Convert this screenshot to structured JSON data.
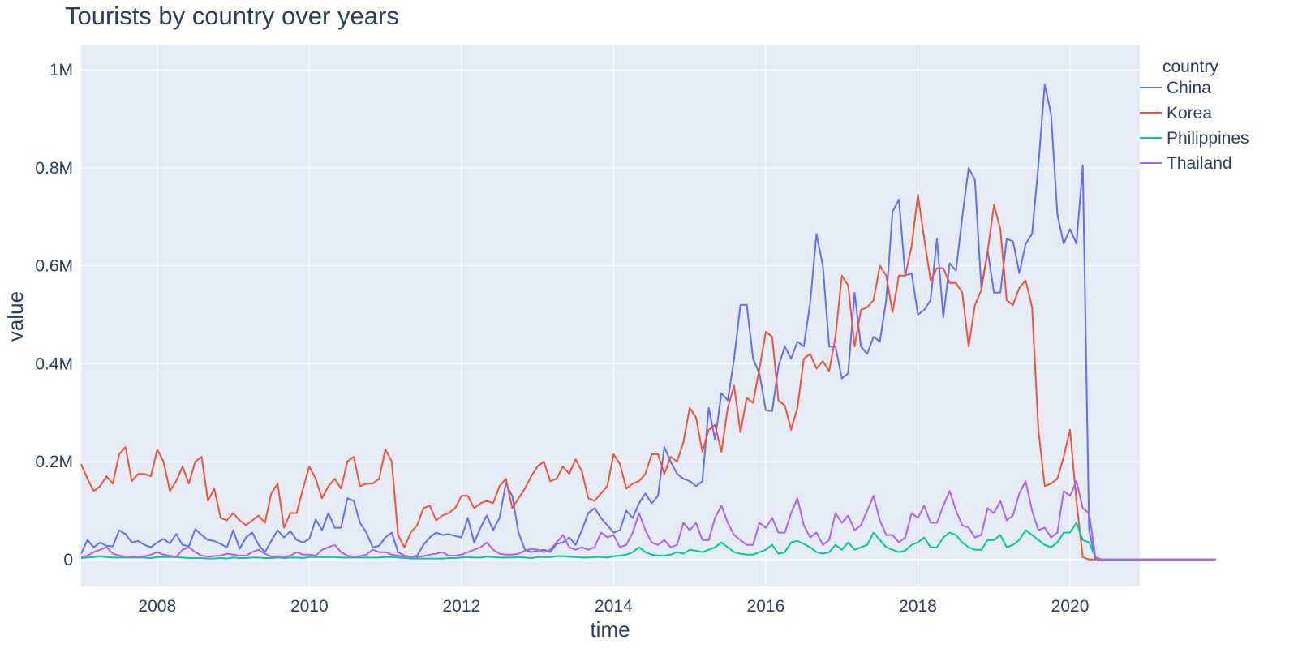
{
  "chart_data": {
    "type": "line",
    "title": "Tourists by country over years",
    "xlabel": "time",
    "ylabel": "value",
    "legend_title": "country",
    "legend_position": "right",
    "grid": true,
    "x_start": "2007-01",
    "frequency": "monthly",
    "xlim": [
      "2007-01",
      "2020-12"
    ],
    "ylim": [
      -55000,
      1050000
    ],
    "x_ticks": [
      {
        "label": "2008",
        "value": "2008-01"
      },
      {
        "label": "2010",
        "value": "2010-01"
      },
      {
        "label": "2012",
        "value": "2012-01"
      },
      {
        "label": "2014",
        "value": "2014-01"
      },
      {
        "label": "2016",
        "value": "2016-01"
      },
      {
        "label": "2018",
        "value": "2018-01"
      },
      {
        "label": "2020",
        "value": "2020-01"
      }
    ],
    "y_ticks": [
      {
        "label": "0",
        "value": 0
      },
      {
        "label": "0.2M",
        "value": 200000
      },
      {
        "label": "0.4M",
        "value": 400000
      },
      {
        "label": "0.6M",
        "value": 600000
      },
      {
        "label": "0.8M",
        "value": 800000
      },
      {
        "label": "1M",
        "value": 1000000
      }
    ],
    "series": [
      {
        "name": "China",
        "color": "#636efa",
        "values": [
          12000,
          40000,
          25000,
          35000,
          28000,
          27000,
          60000,
          52000,
          35000,
          38000,
          30000,
          25000,
          35000,
          42000,
          33000,
          52000,
          30000,
          27000,
          62000,
          50000,
          40000,
          38000,
          32000,
          25000,
          60000,
          22000,
          45000,
          55000,
          30000,
          15000,
          38000,
          60000,
          45000,
          58000,
          40000,
          35000,
          42000,
          82000,
          60000,
          95000,
          65000,
          65000,
          125000,
          120000,
          75000,
          55000,
          25000,
          28000,
          45000,
          55000,
          15000,
          8000,
          5000,
          8000,
          30000,
          45000,
          55000,
          50000,
          52000,
          48000,
          45000,
          85000,
          35000,
          65000,
          90000,
          60000,
          85000,
          155000,
          130000,
          55000,
          20000,
          15000,
          18000,
          20000,
          15000,
          32000,
          35000,
          45000,
          30000,
          60000,
          95000,
          105000,
          85000,
          70000,
          55000,
          60000,
          100000,
          85000,
          115000,
          135000,
          115000,
          130000,
          230000,
          200000,
          175000,
          165000,
          160000,
          150000,
          160000,
          310000,
          245000,
          340000,
          325000,
          410000,
          520000,
          520000,
          410000,
          380000,
          305000,
          303000,
          395000,
          435000,
          410000,
          445000,
          435000,
          525000,
          665000,
          600000,
          435000,
          435000,
          370000,
          380000,
          545000,
          435000,
          420000,
          455000,
          445000,
          530000,
          710000,
          735000,
          580000,
          585000,
          500000,
          510000,
          530000,
          655000,
          495000,
          605000,
          590000,
          700000,
          800000,
          775000,
          555000,
          630000,
          545000,
          545000,
          655000,
          650000,
          585000,
          645000,
          665000,
          805000,
          970000,
          910000,
          705000,
          645000,
          675000,
          645000,
          805000,
          60000,
          0,
          0,
          0,
          0,
          0,
          0,
          0,
          0,
          0,
          0,
          0,
          0,
          0,
          0,
          0,
          0,
          0,
          0,
          0,
          0
        ]
      },
      {
        "name": "Korea",
        "color": "#ef553b",
        "values": [
          195000,
          165000,
          140000,
          150000,
          170000,
          155000,
          215000,
          230000,
          160000,
          175000,
          175000,
          170000,
          225000,
          200000,
          140000,
          160000,
          190000,
          155000,
          200000,
          210000,
          120000,
          145000,
          85000,
          80000,
          95000,
          80000,
          70000,
          80000,
          90000,
          75000,
          135000,
          155000,
          65000,
          95000,
          95000,
          145000,
          190000,
          165000,
          125000,
          150000,
          165000,
          145000,
          200000,
          210000,
          150000,
          155000,
          155000,
          165000,
          225000,
          200000,
          50000,
          25000,
          55000,
          70000,
          105000,
          110000,
          80000,
          90000,
          95000,
          105000,
          130000,
          130000,
          105000,
          115000,
          120000,
          115000,
          150000,
          165000,
          105000,
          125000,
          145000,
          170000,
          190000,
          200000,
          160000,
          165000,
          190000,
          175000,
          205000,
          180000,
          125000,
          120000,
          135000,
          150000,
          215000,
          195000,
          145000,
          155000,
          160000,
          175000,
          215000,
          215000,
          175000,
          210000,
          200000,
          240000,
          310000,
          290000,
          220000,
          265000,
          275000,
          220000,
          310000,
          355000,
          260000,
          330000,
          320000,
          390000,
          465000,
          455000,
          325000,
          315000,
          265000,
          310000,
          410000,
          420000,
          390000,
          405000,
          385000,
          455000,
          580000,
          560000,
          435000,
          510000,
          515000,
          530000,
          600000,
          580000,
          505000,
          580000,
          580000,
          640000,
          745000,
          655000,
          570000,
          595000,
          595000,
          565000,
          565000,
          545000,
          435000,
          520000,
          550000,
          630000,
          725000,
          675000,
          530000,
          520000,
          555000,
          570000,
          515000,
          265000,
          150000,
          155000,
          165000,
          210000,
          265000,
          120000,
          5000,
          0,
          0,
          0,
          0,
          0,
          0,
          0,
          0,
          0,
          0,
          0,
          0,
          0,
          0,
          0,
          0,
          0,
          0,
          0,
          0,
          0
        ]
      },
      {
        "name": "Philippines",
        "color": "#00cc96",
        "values": [
          3000,
          4000,
          5000,
          7000,
          5000,
          4000,
          4000,
          4000,
          4000,
          4000,
          4000,
          3000,
          5000,
          5000,
          5000,
          5000,
          4000,
          3000,
          3000,
          3000,
          2000,
          2000,
          3000,
          2000,
          4000,
          3000,
          3000,
          4000,
          4000,
          3000,
          3000,
          4000,
          3000,
          4000,
          4000,
          3000,
          5000,
          5000,
          5000,
          5000,
          5000,
          4000,
          4000,
          4000,
          4000,
          4000,
          4000,
          4000,
          5000,
          5000,
          4000,
          3000,
          2000,
          2000,
          2000,
          2000,
          2000,
          2000,
          3000,
          3000,
          4000,
          5000,
          4000,
          4000,
          6000,
          5000,
          4000,
          4000,
          4000,
          5000,
          4000,
          3000,
          5000,
          5000,
          5000,
          7000,
          7000,
          6000,
          5000,
          4000,
          4000,
          5000,
          5000,
          4000,
          7000,
          8000,
          10000,
          15000,
          25000,
          15000,
          10000,
          8000,
          8000,
          10000,
          15000,
          12000,
          20000,
          18000,
          15000,
          20000,
          25000,
          35000,
          25000,
          15000,
          12000,
          10000,
          10000,
          15000,
          20000,
          30000,
          12000,
          15000,
          35000,
          38000,
          32000,
          25000,
          15000,
          12000,
          15000,
          30000,
          20000,
          35000,
          20000,
          25000,
          30000,
          55000,
          40000,
          25000,
          20000,
          15000,
          18000,
          30000,
          35000,
          45000,
          25000,
          25000,
          45000,
          55000,
          50000,
          35000,
          25000,
          20000,
          20000,
          40000,
          40000,
          50000,
          25000,
          30000,
          40000,
          60000,
          50000,
          40000,
          30000,
          25000,
          35000,
          55000,
          55000,
          75000,
          40000,
          35000,
          5000,
          0,
          0,
          0,
          0,
          0,
          0,
          0,
          0,
          0,
          0,
          0,
          0,
          0,
          0,
          0,
          0,
          0,
          0,
          0
        ]
      },
      {
        "name": "Thailand",
        "color": "#ab63fa",
        "values": [
          5000,
          8000,
          15000,
          20000,
          25000,
          12000,
          8000,
          6000,
          6000,
          6000,
          7000,
          10000,
          15000,
          10000,
          8000,
          5000,
          20000,
          25000,
          15000,
          8000,
          6000,
          7000,
          8000,
          12000,
          10000,
          8000,
          8000,
          15000,
          20000,
          12000,
          6000,
          7000,
          6000,
          8000,
          15000,
          10000,
          10000,
          8000,
          20000,
          25000,
          30000,
          15000,
          8000,
          6000,
          7000,
          10000,
          20000,
          15000,
          15000,
          10000,
          8000,
          6000,
          6000,
          5000,
          7000,
          10000,
          12000,
          15000,
          8000,
          8000,
          10000,
          15000,
          20000,
          25000,
          35000,
          20000,
          12000,
          10000,
          10000,
          12000,
          18000,
          22000,
          20000,
          15000,
          20000,
          35000,
          50000,
          25000,
          20000,
          25000,
          20000,
          25000,
          55000,
          45000,
          50000,
          25000,
          30000,
          55000,
          95000,
          60000,
          35000,
          30000,
          40000,
          25000,
          30000,
          75000,
          60000,
          75000,
          40000,
          40000,
          85000,
          110000,
          75000,
          50000,
          40000,
          30000,
          30000,
          75000,
          65000,
          85000,
          55000,
          55000,
          95000,
          125000,
          70000,
          45000,
          55000,
          30000,
          40000,
          95000,
          75000,
          90000,
          60000,
          70000,
          100000,
          130000,
          80000,
          50000,
          50000,
          35000,
          45000,
          95000,
          85000,
          110000,
          75000,
          75000,
          110000,
          140000,
          100000,
          70000,
          65000,
          45000,
          50000,
          105000,
          95000,
          120000,
          80000,
          90000,
          135000,
          160000,
          100000,
          60000,
          65000,
          45000,
          55000,
          140000,
          130000,
          160000,
          105000,
          95000,
          5000,
          0,
          0,
          0,
          0,
          0,
          0,
          0,
          0,
          0,
          0,
          0,
          0,
          0,
          0,
          0,
          0,
          0,
          0,
          0
        ]
      }
    ]
  }
}
